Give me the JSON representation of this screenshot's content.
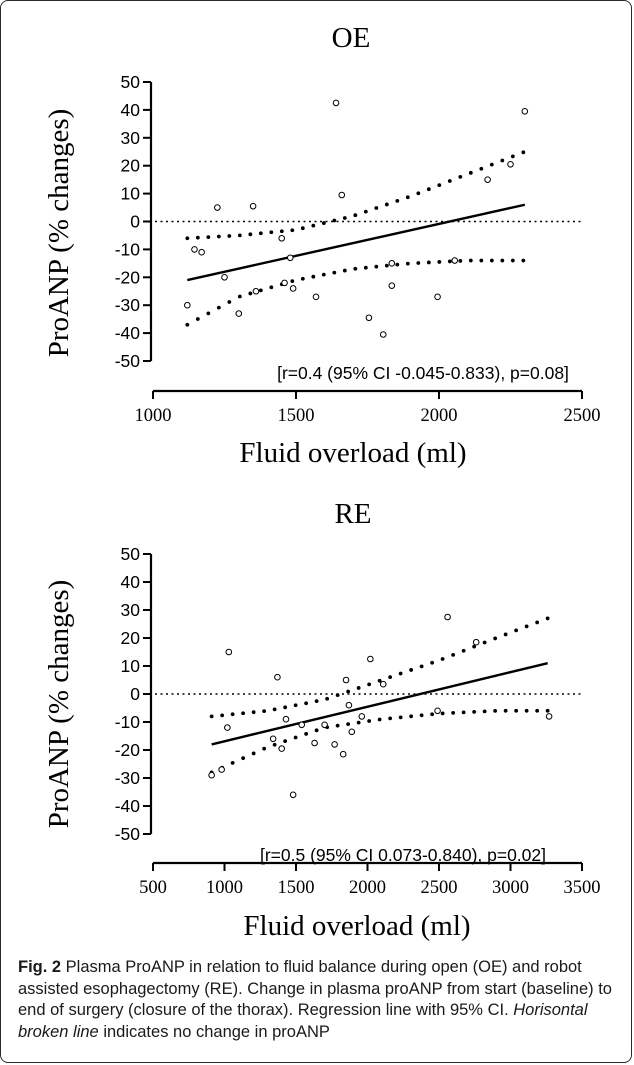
{
  "chart_data": [
    {
      "type": "scatter",
      "title": "OE",
      "xlabel": "Fluid overload (ml)",
      "ylabel": "ProANP (% changes)",
      "xlim": [
        1000,
        2500
      ],
      "ylim": [
        -50,
        50
      ],
      "x_ticks": [
        1000,
        1500,
        2000,
        2500
      ],
      "y_ticks": [
        50,
        40,
        30,
        20,
        10,
        0,
        -10,
        -20,
        -30,
        -40,
        -50
      ],
      "annotation": "[r=0.4 (95% CI -0.045-0.833), p=0.08]",
      "points": [
        {
          "x": 1120,
          "y": -30
        },
        {
          "x": 1145,
          "y": -10
        },
        {
          "x": 1170,
          "y": -11
        },
        {
          "x": 1225,
          "y": 5
        },
        {
          "x": 1250,
          "y": -20
        },
        {
          "x": 1300,
          "y": -33
        },
        {
          "x": 1350,
          "y": 5.5
        },
        {
          "x": 1360,
          "y": -25
        },
        {
          "x": 1450,
          "y": -6
        },
        {
          "x": 1460,
          "y": -22
        },
        {
          "x": 1480,
          "y": -13
        },
        {
          "x": 1490,
          "y": -24
        },
        {
          "x": 1570,
          "y": -27
        },
        {
          "x": 1640,
          "y": 42.5
        },
        {
          "x": 1660,
          "y": 9.5
        },
        {
          "x": 1755,
          "y": -34.5
        },
        {
          "x": 1805,
          "y": -40.5
        },
        {
          "x": 1835,
          "y": -15
        },
        {
          "x": 1835,
          "y": -23
        },
        {
          "x": 1995,
          "y": -27
        },
        {
          "x": 2055,
          "y": -14
        },
        {
          "x": 2170,
          "y": 15
        },
        {
          "x": 2250,
          "y": 20.5
        },
        {
          "x": 2300,
          "y": 39.5
        }
      ],
      "regression_line": [
        [
          1120,
          -21
        ],
        [
          2300,
          6
        ]
      ],
      "ci_upper": [
        [
          1120,
          -6
        ],
        [
          1300,
          -5
        ],
        [
          1500,
          -3
        ],
        [
          1700,
          2
        ],
        [
          1900,
          9
        ],
        [
          2100,
          17
        ],
        [
          2300,
          25
        ]
      ],
      "ci_lower": [
        [
          1120,
          -37
        ],
        [
          1300,
          -27
        ],
        [
          1500,
          -21
        ],
        [
          1700,
          -17
        ],
        [
          1900,
          -15
        ],
        [
          2100,
          -14
        ],
        [
          2300,
          -14
        ]
      ],
      "reference_line_y": 0
    },
    {
      "type": "scatter",
      "title": "RE",
      "xlabel": "Fluid overload (ml)",
      "ylabel": "ProANP (% changes)",
      "xlim": [
        500,
        3500
      ],
      "ylim": [
        -50,
        50
      ],
      "x_ticks": [
        500,
        1000,
        1500,
        2000,
        2500,
        3000,
        3500
      ],
      "y_ticks": [
        50,
        40,
        30,
        20,
        10,
        0,
        -10,
        -20,
        -30,
        -40,
        -50
      ],
      "annotation": "[r=0.5 (95% CI 0.073-0.840), p=0.02]",
      "points": [
        {
          "x": 910,
          "y": -29
        },
        {
          "x": 980,
          "y": -27
        },
        {
          "x": 1020,
          "y": -12
        },
        {
          "x": 1030,
          "y": 15
        },
        {
          "x": 1340,
          "y": -16
        },
        {
          "x": 1370,
          "y": 6
        },
        {
          "x": 1400,
          "y": -19.5
        },
        {
          "x": 1430,
          "y": -9
        },
        {
          "x": 1480,
          "y": -36
        },
        {
          "x": 1540,
          "y": -11
        },
        {
          "x": 1630,
          "y": -17.5
        },
        {
          "x": 1700,
          "y": -11
        },
        {
          "x": 1770,
          "y": -18
        },
        {
          "x": 1830,
          "y": -21.5
        },
        {
          "x": 1850,
          "y": 5
        },
        {
          "x": 1870,
          "y": -4
        },
        {
          "x": 1890,
          "y": -13.5
        },
        {
          "x": 1960,
          "y": -8
        },
        {
          "x": 2020,
          "y": 12.5
        },
        {
          "x": 2110,
          "y": 3.5
        },
        {
          "x": 2490,
          "y": -6
        },
        {
          "x": 2560,
          "y": 27.5
        },
        {
          "x": 2760,
          "y": 18.5
        },
        {
          "x": 3270,
          "y": -8
        }
      ],
      "regression_line": [
        [
          910,
          -18
        ],
        [
          3260,
          11
        ]
      ],
      "ci_upper": [
        [
          910,
          -8
        ],
        [
          1300,
          -6
        ],
        [
          1700,
          -2
        ],
        [
          2100,
          5
        ],
        [
          2500,
          12
        ],
        [
          2900,
          20
        ],
        [
          3260,
          27
        ]
      ],
      "ci_lower": [
        [
          910,
          -28
        ],
        [
          1300,
          -19
        ],
        [
          1700,
          -12
        ],
        [
          2100,
          -9
        ],
        [
          2500,
          -7
        ],
        [
          2900,
          -6
        ],
        [
          3260,
          -6
        ]
      ],
      "reference_line_y": 0
    }
  ],
  "caption": {
    "fig_label": "Fig. 2",
    "text_1": " Plasma ProANP in relation to fluid balance during open (OE) and robot assisted esophagectomy (RE). Change in plasma proANP from start (baseline) to end of surgery (closure of the thorax). Regression line with 95% CI. ",
    "italic": "Horisontal broken line",
    "text_2": " indicates no change in proANP"
  }
}
